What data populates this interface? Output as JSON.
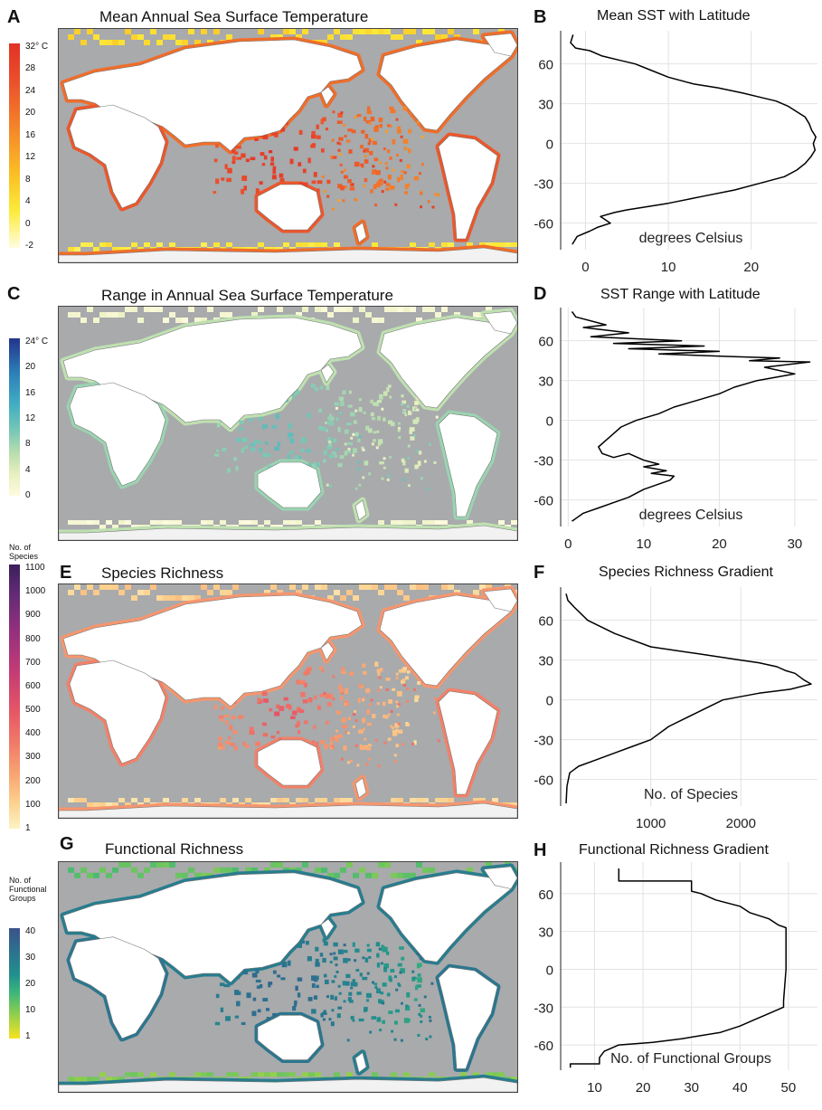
{
  "panels": {
    "a": {
      "letter": "A",
      "title": "Mean Annual Sea Surface Temperature",
      "legend_labels": [
        "32° C",
        "28",
        "24",
        "20",
        "16",
        "12",
        "8",
        "4",
        "0",
        "-2"
      ],
      "colors": [
        "#fffde0",
        "#fbeb3a",
        "#fbc425",
        "#f8a028",
        "#f2752a",
        "#ea4f2b",
        "#e23127"
      ],
      "coast_scale": [
        0.45,
        0.95
      ]
    },
    "b": {
      "letter": "B",
      "title": "Mean SST with Latitude"
    },
    "c": {
      "letter": "C",
      "title": "Range in Annual Sea Surface Temperature",
      "legend_labels": [
        "24° C",
        "20",
        "16",
        "12",
        "8",
        "4",
        "0"
      ],
      "colors": [
        "#fffbe0",
        "#e6efbd",
        "#b5dcae",
        "#74c6b6",
        "#41aec3",
        "#2c7fb8",
        "#24348c"
      ],
      "coast_scale": [
        0.05,
        0.55
      ]
    },
    "d": {
      "letter": "D",
      "title": "SST Range with Latitude"
    },
    "e": {
      "letter": "E",
      "title": "Species Richness",
      "legend_title": "No. of Species",
      "legend_labels": [
        "1100",
        "1000",
        "900",
        "800",
        "700",
        "600",
        "500",
        "400",
        "300",
        "200",
        "100",
        "1"
      ],
      "colors": [
        "#fdf3c4",
        "#fcd08d",
        "#f8a774",
        "#f17c68",
        "#e45566",
        "#c23b75",
        "#93307f",
        "#5f2a73",
        "#3a1f5c"
      ],
      "coast_scale": [
        0.15,
        0.45
      ]
    },
    "f": {
      "letter": "F",
      "title": "Species Richness Gradient"
    },
    "g": {
      "letter": "G",
      "title": "Functional Richness",
      "legend_title": "No. of Functional Groups",
      "legend_labels": [
        "40",
        "30",
        "20",
        "10",
        "1"
      ],
      "colors": [
        "#f7e321",
        "#8fcf4d",
        "#3bb57a",
        "#21908d",
        "#2c728e",
        "#3b528b"
      ],
      "coast_scale": [
        0.6,
        0.85
      ]
    },
    "h": {
      "letter": "H",
      "title": "Functional Richness Gradient"
    }
  },
  "chart_data": [
    {
      "type": "line",
      "title": "Mean SST with Latitude",
      "xlabel": "degrees Celsius",
      "ylabel": "",
      "xlim": [
        -3,
        28
      ],
      "ylim": [
        -80,
        85
      ],
      "xticks": [
        0,
        10,
        20
      ],
      "yticks": [
        60,
        30,
        0,
        -30,
        -60
      ],
      "grid": true,
      "x": [
        -1.5,
        -1.8,
        -1.2,
        0.5,
        2,
        4,
        6,
        8,
        10,
        13,
        16,
        19,
        21,
        23,
        24.5,
        25.5,
        26.5,
        27,
        27.3,
        27.8,
        27.5,
        27.7,
        27.2,
        26.5,
        25.5,
        24,
        21,
        18,
        14,
        10,
        7,
        5,
        3.5,
        1.8,
        3,
        1.5,
        0.5,
        -1,
        -1.6
      ],
      "y": [
        82,
        76,
        72,
        70,
        66,
        63,
        60,
        55,
        50,
        45,
        42,
        38,
        35,
        32,
        28,
        24,
        20,
        15,
        10,
        5,
        0,
        -5,
        -10,
        -15,
        -20,
        -25,
        -30,
        -35,
        -40,
        -45,
        -48,
        -50,
        -52,
        -55,
        -60,
        -63,
        -66,
        -70,
        -76
      ]
    },
    {
      "type": "line",
      "title": "SST Range with Latitude",
      "xlabel": "degrees Celsius",
      "ylabel": "",
      "xlim": [
        -1,
        33
      ],
      "ylim": [
        -80,
        85
      ],
      "xticks": [
        0,
        10,
        20,
        30
      ],
      "yticks": [
        60,
        30,
        0,
        -30,
        -60
      ],
      "grid": true,
      "x": [
        0.5,
        1,
        5,
        2,
        8,
        3,
        15,
        6,
        18,
        8,
        20,
        12,
        22,
        28,
        24,
        32,
        26,
        30,
        25,
        22,
        20,
        17,
        14,
        12,
        9,
        7,
        6,
        5,
        4,
        4.5,
        6,
        8,
        10,
        12,
        10,
        13,
        11,
        14,
        13.5,
        12,
        10,
        9,
        8,
        6,
        4,
        2,
        0.5
      ],
      "y": [
        82,
        78,
        72,
        70,
        66,
        63,
        60,
        58,
        56,
        54,
        52,
        50,
        48,
        47,
        45,
        44,
        40,
        35,
        30,
        25,
        20,
        15,
        10,
        5,
        0,
        -5,
        -10,
        -15,
        -20,
        -25,
        -28,
        -25,
        -30,
        -33,
        -35,
        -38,
        -40,
        -42,
        -45,
        -48,
        -52,
        -55,
        -58,
        -62,
        -66,
        -70,
        -76
      ]
    },
    {
      "type": "line",
      "title": "Species Richness Gradient",
      "xlabel": "No. of Species",
      "ylabel": "",
      "xlim": [
        0,
        2850
      ],
      "ylim": [
        -80,
        85
      ],
      "xticks": [
        1000,
        2000
      ],
      "yticks": [
        60,
        30,
        0,
        -30,
        -60
      ],
      "grid": true,
      "x": [
        60,
        80,
        150,
        300,
        600,
        1000,
        1500,
        2000,
        2200,
        2400,
        2500,
        2600,
        2700,
        2780,
        2550,
        2200,
        1800,
        1500,
        1200,
        1000,
        800,
        600,
        400,
        200,
        100,
        70,
        60
      ],
      "y": [
        80,
        75,
        70,
        60,
        50,
        40,
        35,
        30,
        28,
        25,
        22,
        20,
        15,
        12,
        8,
        5,
        0,
        -10,
        -20,
        -30,
        -35,
        -40,
        -45,
        -50,
        -55,
        -65,
        -78
      ]
    },
    {
      "type": "line",
      "title": "Functional Richness Gradient",
      "xlabel": "No. of Functional Groups",
      "ylabel": "",
      "xlim": [
        3,
        56
      ],
      "ylim": [
        -80,
        85
      ],
      "xticks": [
        10,
        20,
        30,
        40,
        50
      ],
      "yticks": [
        60,
        30,
        0,
        -30,
        -60
      ],
      "grid": true,
      "x": [
        15,
        15,
        30,
        30,
        32,
        35,
        40,
        42,
        46,
        48,
        49.5,
        49.5,
        49,
        49,
        46,
        43,
        40,
        36,
        28,
        22,
        15,
        12,
        11,
        11,
        5,
        5
      ],
      "y": [
        80,
        70,
        70,
        62,
        60,
        55,
        50,
        45,
        40,
        35,
        33,
        0,
        -25,
        -30,
        -35,
        -40,
        -45,
        -50,
        -55,
        -58,
        -60,
        -65,
        -70,
        -75,
        -75,
        -78
      ]
    }
  ]
}
